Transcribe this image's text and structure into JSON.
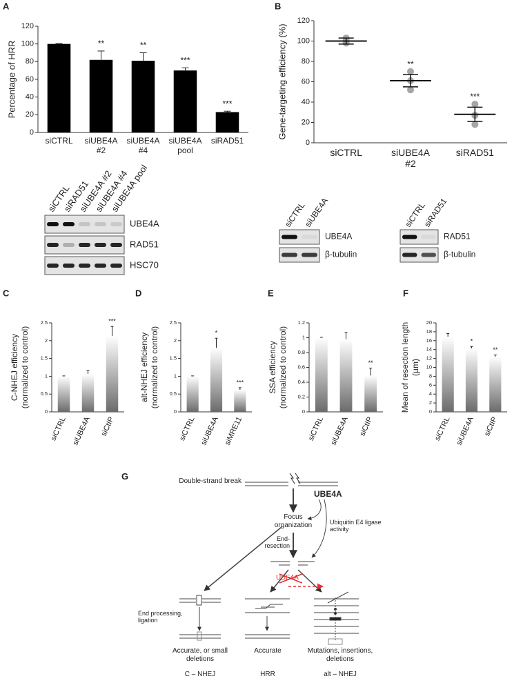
{
  "chart_data": [
    {
      "panel": "A",
      "type": "bar",
      "ylabel": [
        "Percentage of HRR"
      ],
      "categories": [
        "siCTRL",
        "siUBE4A #2",
        "siUBE4A #4",
        "siUBE4A pool",
        "siRAD51"
      ],
      "values": [
        100,
        82,
        81,
        70,
        23
      ],
      "errors": [
        0.5,
        10,
        9,
        3,
        1
      ],
      "annotations": [
        null,
        "**",
        "**",
        "***",
        "***"
      ],
      "color": "#000000",
      "ylim": [
        0,
        120
      ],
      "yticks": [
        0,
        20,
        40,
        60,
        80,
        100,
        120
      ]
    },
    {
      "panel": "B",
      "type": "dotplot",
      "ylabel": [
        "Gene-targeting efficiency (%)"
      ],
      "categories": [
        "siCTRL",
        "siUBE4A #2",
        "siRAD51"
      ],
      "points": [
        [
          98,
          101,
          103
        ],
        [
          52,
          61,
          70
        ],
        [
          18,
          27,
          38
        ]
      ],
      "values": [
        100,
        61,
        28
      ],
      "errors": [
        3,
        6,
        7
      ],
      "annotations": [
        null,
        "**",
        "***"
      ],
      "color": "#a6a6a6",
      "ylim": [
        0,
        120
      ],
      "yticks": [
        0,
        20,
        40,
        60,
        80,
        100,
        120
      ]
    },
    {
      "panel": "C",
      "type": "bar",
      "ylabel": [
        "C-NHEJ efficiency",
        "(normalized to control)"
      ],
      "categories": [
        "siCTRL",
        "siUBE4A",
        "siCtIP"
      ],
      "values": [
        1,
        1.06,
        2.13
      ],
      "errors": [
        0.01,
        0.1,
        0.27
      ],
      "annotations": [
        null,
        null,
        "***"
      ],
      "color": "#6b6b6b",
      "gradient": true,
      "ylim": [
        0,
        2.5
      ],
      "yticks": [
        0,
        0.5,
        1,
        1.5,
        2,
        2.5
      ]
    },
    {
      "panel": "D",
      "type": "bar",
      "ylabel": [
        "alt-NHEJ efficiency",
        "(normalized to control)"
      ],
      "categories": [
        "siCTRL",
        "siUBE4A",
        "siMRE11"
      ],
      "values": [
        1,
        1.8,
        0.62
      ],
      "errors": [
        0.01,
        0.27,
        0.06
      ],
      "annotations": [
        null,
        "*",
        "***"
      ],
      "color": "#6b6b6b",
      "gradient": true,
      "ylim": [
        0,
        2.5
      ],
      "yticks": [
        0,
        0.5,
        1,
        1.5,
        2,
        2.5
      ]
    },
    {
      "panel": "E",
      "type": "bar",
      "ylabel": [
        "SSA efficiency",
        "(normalized to control)"
      ],
      "categories": [
        "siCTRL",
        "siUBE4A",
        "siCtIP"
      ],
      "values": [
        1,
        0.98,
        0.49
      ],
      "errors": [
        0.005,
        0.09,
        0.1
      ],
      "annotations": [
        null,
        null,
        "**"
      ],
      "color": "#6b6b6b",
      "gradient": true,
      "ylim": [
        0,
        1.2
      ],
      "yticks": [
        0,
        0.2,
        0.4,
        0.6,
        0.8,
        1,
        1.2
      ]
    },
    {
      "panel": "F",
      "type": "bar",
      "ylabel": [
        "Mean of resection length",
        "(µm)"
      ],
      "categories": [
        "siCTRL",
        "siUBE4A",
        "siCtIP"
      ],
      "values": [
        16.9,
        14.3,
        12.4
      ],
      "errors": [
        0.7,
        0.4,
        0.4
      ],
      "annotations": [
        null,
        "*",
        "**"
      ],
      "color": "#6b6b6b",
      "gradient": true,
      "ylim": [
        0,
        20
      ],
      "yticks": [
        0,
        2,
        4,
        6,
        8,
        10,
        12,
        14,
        16,
        18,
        20
      ]
    }
  ],
  "blots": [
    {
      "lanes": [
        "siCTRL",
        "siRAD51",
        "siUBE4A #2",
        "siUBE4A #4",
        "siUBE4A pool"
      ],
      "rows": [
        "UBE4A",
        "RAD51",
        "HSC70"
      ]
    },
    {
      "lanes": [
        "siCTRL",
        "siUBE4A"
      ],
      "rows": [
        "UBE4A",
        "β-tubulin"
      ]
    },
    {
      "lanes": [
        "siCTRL",
        "siRAD51"
      ],
      "rows": [
        "RAD51",
        "β-tubulin"
      ]
    }
  ],
  "diagram": {
    "panel": "G",
    "dsb": "Double-strand break",
    "ube4a": "UBE4A",
    "focus": "Focus organization",
    "ligase": "Ubiquitin E4 ligase activity",
    "resection": "End-resection",
    "inhibited": "UBE4A",
    "end_processing": "End processing, ligation",
    "outcomes": [
      {
        "result": "Accurate, or small deletions",
        "pathway": "C – NHEJ"
      },
      {
        "result": "Accurate",
        "pathway": "HRR"
      },
      {
        "result": "Mutations, insertions, deletions",
        "pathway": "alt – NHEJ"
      }
    ]
  }
}
